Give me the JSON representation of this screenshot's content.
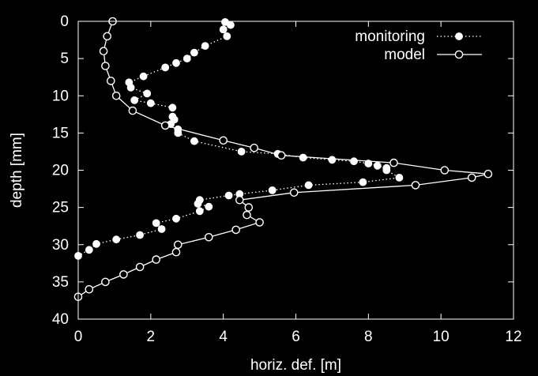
{
  "chart_data": {
    "type": "line",
    "title": "",
    "xlabel": "horiz. def. [m]",
    "ylabel": "depth [mm]",
    "xlim": [
      0,
      12
    ],
    "ylim": [
      0,
      40
    ],
    "y_inverted": true,
    "x_ticks": [
      0,
      2,
      4,
      6,
      8,
      10,
      12
    ],
    "y_ticks": [
      0,
      5,
      10,
      15,
      20,
      25,
      30,
      35,
      40
    ],
    "grid": false,
    "legend_position": "top-right",
    "background_color": "#000000",
    "foreground_color": "#ffffff",
    "series": [
      {
        "name": "monitoring",
        "line_style": "dotted",
        "marker": "filled-circle",
        "points": [
          [
            4.05,
            0.1
          ],
          [
            4.2,
            0.5
          ],
          [
            4.0,
            1.1
          ],
          [
            4.1,
            2.0
          ],
          [
            3.5,
            3.3
          ],
          [
            3.2,
            4.2
          ],
          [
            3.0,
            5.0
          ],
          [
            2.7,
            5.6
          ],
          [
            2.4,
            6.2
          ],
          [
            1.8,
            7.4
          ],
          [
            1.4,
            8.2
          ],
          [
            1.45,
            8.9
          ],
          [
            1.9,
            9.7
          ],
          [
            1.55,
            10.6
          ],
          [
            2.0,
            11.0
          ],
          [
            2.6,
            11.6
          ],
          [
            2.6,
            12.8
          ],
          [
            2.65,
            13.2
          ],
          [
            2.55,
            13.8
          ],
          [
            2.75,
            14.5
          ],
          [
            2.75,
            15.0
          ],
          [
            3.2,
            16.1
          ],
          [
            4.5,
            17.5
          ],
          [
            5.5,
            17.8
          ],
          [
            6.2,
            18.3
          ],
          [
            7.0,
            18.6
          ],
          [
            7.6,
            18.8
          ],
          [
            8.0,
            19.1
          ],
          [
            8.25,
            19.4
          ],
          [
            8.5,
            19.7
          ],
          [
            8.5,
            20.0
          ],
          [
            8.85,
            21.0
          ],
          [
            7.85,
            21.6
          ],
          [
            6.35,
            22.0
          ],
          [
            5.35,
            22.7
          ],
          [
            4.45,
            23.2
          ],
          [
            4.15,
            23.4
          ],
          [
            3.35,
            24.0
          ],
          [
            3.3,
            24.5
          ],
          [
            3.6,
            24.9
          ],
          [
            3.35,
            25.5
          ],
          [
            2.7,
            26.5
          ],
          [
            2.15,
            27.1
          ],
          [
            2.3,
            27.9
          ],
          [
            1.7,
            28.7
          ],
          [
            1.05,
            29.3
          ],
          [
            0.5,
            29.9
          ],
          [
            0.3,
            30.7
          ],
          [
            0.0,
            31.5
          ]
        ]
      },
      {
        "name": "model",
        "line_style": "solid",
        "marker": "open-circle",
        "points": [
          [
            0.95,
            0.0
          ],
          [
            0.8,
            2.0
          ],
          [
            0.7,
            4.0
          ],
          [
            0.75,
            6.0
          ],
          [
            0.9,
            8.0
          ],
          [
            1.05,
            10.0
          ],
          [
            1.5,
            12.0
          ],
          [
            2.4,
            14.0
          ],
          [
            4.0,
            16.0
          ],
          [
            4.85,
            17.0
          ],
          [
            5.6,
            18.0
          ],
          [
            8.7,
            19.0
          ],
          [
            10.1,
            20.0
          ],
          [
            11.3,
            20.5
          ],
          [
            10.85,
            21.0
          ],
          [
            9.3,
            22.0
          ],
          [
            5.95,
            23.0
          ],
          [
            4.45,
            24.0
          ],
          [
            4.7,
            25.0
          ],
          [
            4.65,
            26.0
          ],
          [
            5.0,
            27.0
          ],
          [
            4.35,
            28.0
          ],
          [
            3.6,
            29.0
          ],
          [
            2.75,
            30.0
          ],
          [
            2.7,
            31.0
          ],
          [
            2.15,
            32.0
          ],
          [
            1.7,
            33.0
          ],
          [
            1.25,
            34.0
          ],
          [
            0.75,
            35.0
          ],
          [
            0.3,
            36.0
          ],
          [
            0.0,
            37.0
          ]
        ]
      }
    ]
  }
}
